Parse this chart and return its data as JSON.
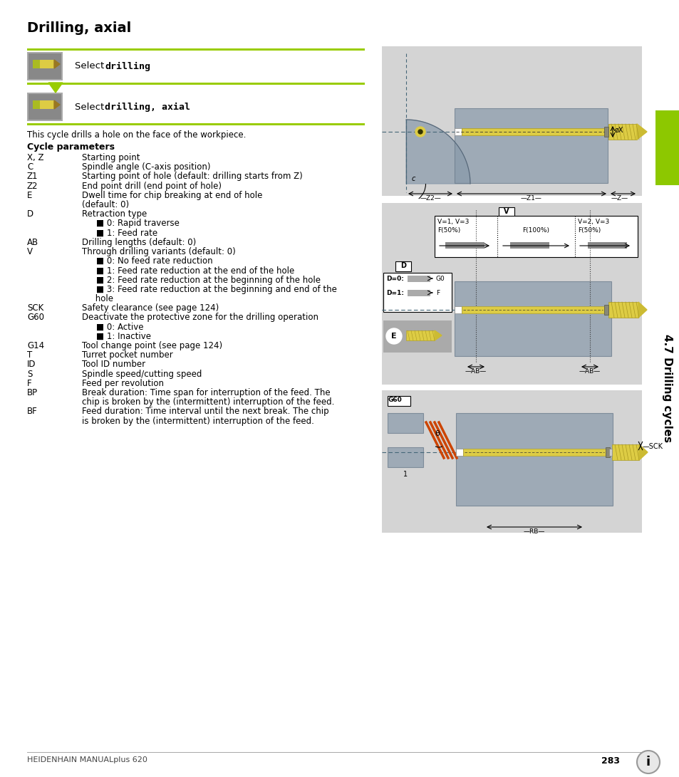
{
  "title": "Drilling, axial",
  "page_bg": "#ffffff",
  "lime_green": "#99cc00",
  "gray_panel": "#d4d4d4",
  "sidebar_green": "#8dc800",
  "sidebar_text": "4.7 Drilling cycles",
  "page_number": "283",
  "footer_left": "HEIDENHAIN MANUALplus 620",
  "select_drilling": "Select ",
  "drilling_bold": "drilling",
  "select_drilling_axial": "Select ",
  "drilling_axial_bold": "drilling, axial",
  "cycle_description": "This cycle drills a hole on the face of the workpiece.",
  "cycle_params_header": "Cycle parameters",
  "params": [
    [
      "X, Z",
      "Starting point"
    ],
    [
      "C",
      "Spindle angle (C-axis position)"
    ],
    [
      "Z1",
      "Starting point of hole (default: drilling starts from Z)"
    ],
    [
      "Z2",
      "End point drill (end point of hole)"
    ],
    [
      "E",
      "Dwell time for chip breaking at end of hole"
    ],
    [
      "",
      "(default: 0)"
    ],
    [
      "D",
      "Retraction type"
    ],
    [
      "",
      "■ 0: Rapid traverse"
    ],
    [
      "",
      "■ 1: Feed rate"
    ],
    [
      "AB",
      "Drilling lengths (default: 0)"
    ],
    [
      "V",
      "Through drilling variants (default: 0)"
    ],
    [
      "",
      "■ 0: No feed rate reduction"
    ],
    [
      "",
      "■ 1: Feed rate reduction at the end of the hole"
    ],
    [
      "",
      "■ 2: Feed rate reduction at the beginning of the hole"
    ],
    [
      "",
      "■ 3: Feed rate reduction at the beginning and end of the"
    ],
    [
      "",
      "     hole"
    ],
    [
      "SCK",
      "Safety clearance (see page 124)"
    ],
    [
      "G60",
      "Deactivate the protective zone for the drilling operation"
    ],
    [
      "",
      "■ 0: Active"
    ],
    [
      "",
      "■ 1: Inactive"
    ],
    [
      "G14",
      "Tool change point (see page 124)"
    ],
    [
      "T",
      "Turret pocket number"
    ],
    [
      "ID",
      "Tool ID number"
    ],
    [
      "S",
      "Spindle speed/cutting speed"
    ],
    [
      "F",
      "Feed per revolution"
    ],
    [
      "BP",
      "Break duration: Time span for interruption of the feed. The"
    ],
    [
      "",
      "chip is broken by the (intermittent) interruption of the feed."
    ],
    [
      "BF",
      "Feed duration: Time interval until the next break. The chip"
    ],
    [
      "",
      "is broken by the (intermittent) interruption of the feed."
    ]
  ]
}
